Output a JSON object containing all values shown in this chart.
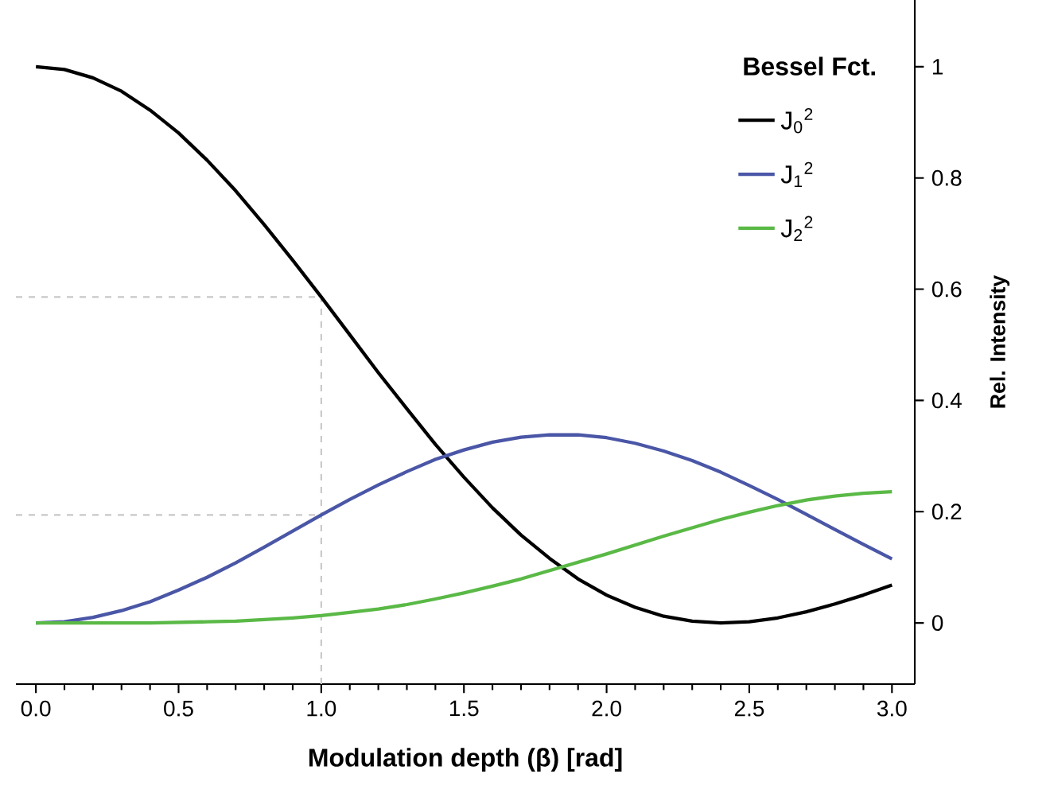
{
  "chart_data": {
    "type": "line",
    "xlabel": "Modulation depth (β) [rad]",
    "ylabel": "Rel. Intensity",
    "legend_title": "Bessel Fct.",
    "legend": "top right",
    "x": [
      0,
      0.1,
      0.2,
      0.3,
      0.4,
      0.5,
      0.6,
      0.7,
      0.8,
      0.9,
      1.0,
      1.1,
      1.2,
      1.3,
      1.4,
      1.5,
      1.6,
      1.7,
      1.8,
      1.9,
      2.0,
      2.1,
      2.2,
      2.3,
      2.4,
      2.5,
      2.6,
      2.7,
      2.8,
      2.9,
      3.0
    ],
    "series": [
      {
        "name": "J$_{0}$$^{2}$",
        "color": "#000000",
        "values": [
          1,
          0.995,
          0.98,
          0.956,
          0.922,
          0.881,
          0.832,
          0.777,
          0.716,
          0.652,
          0.586,
          0.518,
          0.45,
          0.385,
          0.321,
          0.262,
          0.207,
          0.158,
          0.116,
          0.079,
          0.05,
          0.028,
          0.012,
          0.003,
          0.0,
          0.002,
          0.009,
          0.02,
          0.034,
          0.05,
          0.068
        ]
      },
      {
        "name": "J$_{1}$$^{2}$",
        "color": "#4a56a6",
        "values": [
          0,
          0.002,
          0.01,
          0.022,
          0.038,
          0.059,
          0.082,
          0.108,
          0.136,
          0.165,
          0.194,
          0.222,
          0.248,
          0.272,
          0.294,
          0.311,
          0.325,
          0.334,
          0.338,
          0.338,
          0.333,
          0.323,
          0.309,
          0.292,
          0.271,
          0.247,
          0.222,
          0.195,
          0.168,
          0.141,
          0.115
        ]
      },
      {
        "name": "J$_{2}$$^{2}$",
        "color": "#5ab946",
        "values": [
          0,
          0.0,
          0.0,
          0.0,
          0.0,
          0.001,
          0.002,
          0.003,
          0.006,
          0.009,
          0.013,
          0.019,
          0.025,
          0.033,
          0.043,
          0.054,
          0.066,
          0.079,
          0.094,
          0.109,
          0.124,
          0.14,
          0.156,
          0.171,
          0.186,
          0.199,
          0.211,
          0.221,
          0.228,
          0.233,
          0.236
        ]
      }
    ],
    "xlim": [
      -0.07,
      3.08
    ],
    "ylim": [
      -0.11,
      1.12
    ],
    "xticks": [
      {
        "value": 0,
        "label": "0.0"
      },
      {
        "value": 0.5,
        "label": "0.5"
      },
      {
        "value": 1,
        "label": "1.0"
      },
      {
        "value": 1.5,
        "label": "1.5"
      },
      {
        "value": 2,
        "label": "2.0"
      },
      {
        "value": 2.5,
        "label": "2.5"
      },
      {
        "value": 3,
        "label": "3.0"
      }
    ],
    "yticks": [
      0,
      0.2,
      0.4,
      0.6,
      0.8,
      1
    ],
    "ref_lines": [
      {
        "axis": "x",
        "value": 1,
        "color": "#c8c8c8",
        "line_style": "dashed"
      },
      {
        "axis": "y",
        "value": 0.586,
        "color": "#c8c8c8",
        "line_style": "dashed"
      },
      {
        "axis": "y",
        "value": 0.194,
        "color": "#c8c8c8",
        "line_style": "dashed"
      }
    ]
  }
}
